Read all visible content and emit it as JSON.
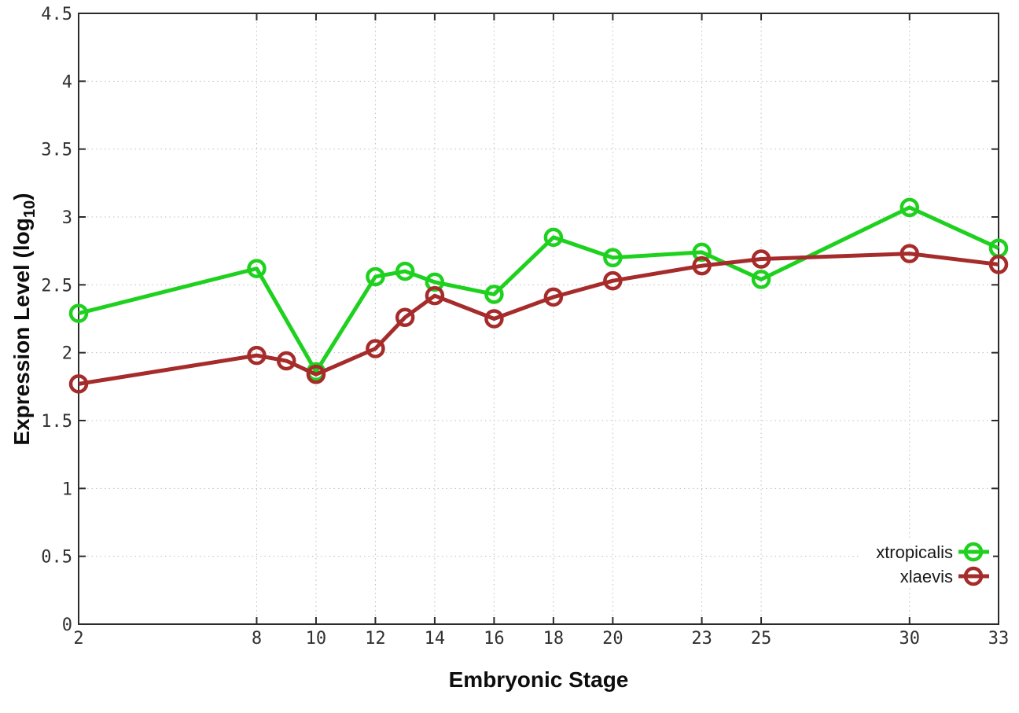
{
  "figure": {
    "xlabel": "Embryonic Stage",
    "ylabel_main": "Expression Level (log",
    "ylabel_sub": "10",
    "ylabel_close": ")"
  },
  "colors": {
    "xtropicalis": "#1ed11e",
    "xlaevis": "#a62b2b",
    "border": "#2b2b2b",
    "grid": "#bebebe",
    "tick_text": "#303030",
    "legend_text": "#1a1a1a"
  },
  "chart_data": {
    "type": "line",
    "title": "",
    "xlabel": "Embryonic Stage",
    "ylabel": "Expression Level (log10)",
    "xlim": [
      2,
      33
    ],
    "ylim": [
      0,
      4.5
    ],
    "xticks": [
      2,
      8,
      10,
      12,
      14,
      16,
      18,
      20,
      23,
      25,
      30,
      33
    ],
    "yticks": [
      0,
      0.5,
      1,
      1.5,
      2,
      2.5,
      3,
      3.5,
      4,
      4.5
    ],
    "grid": true,
    "legend_position": "inside-bottom-right",
    "marker": "open-circle",
    "series": [
      {
        "name": "xtropicalis",
        "color": "#1ed11e",
        "x": [
          2,
          8,
          10,
          12,
          13,
          14,
          16,
          18,
          20,
          23,
          25,
          30,
          33
        ],
        "y": [
          2.29,
          2.62,
          1.86,
          2.56,
          2.6,
          2.52,
          2.43,
          2.85,
          2.7,
          2.74,
          2.54,
          3.07,
          2.77
        ]
      },
      {
        "name": "xlaevis",
        "color": "#a62b2b",
        "x": [
          2,
          8,
          9,
          10,
          12,
          13,
          14,
          16,
          18,
          20,
          23,
          25,
          30,
          33
        ],
        "y": [
          1.77,
          1.98,
          1.94,
          1.84,
          2.03,
          2.26,
          2.42,
          2.25,
          2.41,
          2.53,
          2.64,
          2.69,
          2.73,
          2.65
        ]
      }
    ]
  }
}
